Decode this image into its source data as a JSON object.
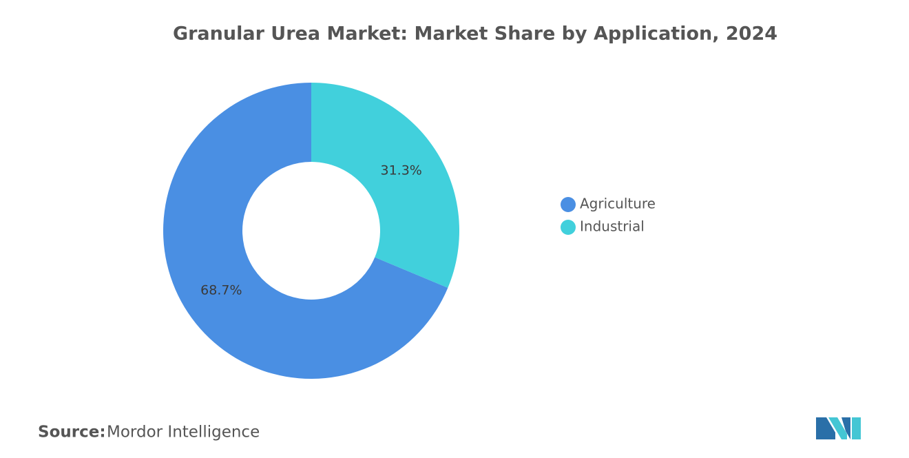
{
  "chart_data": {
    "type": "donut",
    "title": "Granular Urea Market: Market Share by Application, 2024",
    "categories": [
      "Agriculture",
      "Industrial"
    ],
    "values": [
      68.7,
      31.3
    ],
    "value_labels": [
      "68.7%",
      "31.3%"
    ],
    "colors": [
      "#4a8fe3",
      "#41d0dc"
    ],
    "legend": "right",
    "source": {
      "label": "Source:",
      "text": "Mordor Intelligence"
    }
  }
}
